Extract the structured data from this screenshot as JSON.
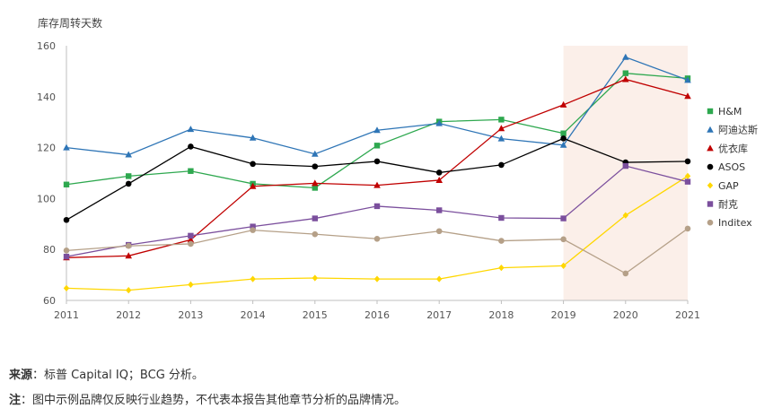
{
  "chart_data": {
    "type": "line",
    "ylabel": "库存周转天数",
    "xlabel": "",
    "x": [
      "2011",
      "2012",
      "2013",
      "2014",
      "2015",
      "2016",
      "2017",
      "2018",
      "2019",
      "2020",
      "2021"
    ],
    "ylim": [
      60,
      160
    ],
    "yticks": [
      60,
      80,
      100,
      120,
      140,
      160
    ],
    "highlight_range": [
      "2019",
      "2021"
    ],
    "highlight_color": "#fbefe9",
    "legend_position": "right",
    "series": [
      {
        "name": "H&M",
        "color": "#2ea84f",
        "marker": "square",
        "values": [
          105.5,
          108.8,
          110.8,
          105.8,
          104.2,
          120.8,
          130.2,
          131.0,
          125.6,
          149.2,
          147.2
        ]
      },
      {
        "name": "阿迪达斯",
        "color": "#2e75b6",
        "marker": "triangle",
        "values": [
          120.0,
          117.2,
          127.2,
          123.8,
          117.5,
          126.8,
          129.5,
          123.5,
          121.0,
          155.5,
          146.5
        ]
      },
      {
        "name": "优衣库",
        "color": "#c00000",
        "marker": "triangle",
        "values": [
          76.8,
          77.5,
          83.8,
          104.8,
          106.0,
          105.2,
          107.2,
          127.5,
          136.8,
          146.8,
          140.2
        ]
      },
      {
        "name": "ASOS",
        "color": "#000000",
        "marker": "circle",
        "values": [
          91.6,
          105.8,
          120.4,
          113.6,
          112.6,
          114.6,
          110.2,
          113.2,
          123.6,
          114.2,
          114.6
        ]
      },
      {
        "name": "GAP",
        "color": "#ffd700",
        "marker": "diamond",
        "values": [
          64.8,
          64.0,
          66.2,
          68.4,
          68.8,
          68.4,
          68.4,
          72.8,
          73.6,
          93.4,
          108.8
        ]
      },
      {
        "name": "耐克",
        "color": "#7b4f9d",
        "marker": "square",
        "values": [
          77.2,
          81.8,
          85.4,
          89.0,
          92.2,
          97.0,
          95.4,
          92.4,
          92.2,
          112.8,
          106.6
        ]
      },
      {
        "name": "Inditex",
        "color": "#b5a088",
        "marker": "circle",
        "values": [
          79.6,
          81.4,
          82.2,
          87.6,
          86.0,
          84.2,
          87.2,
          83.4,
          84.0,
          70.6,
          88.2
        ]
      }
    ]
  },
  "footer": {
    "source_label": "来源",
    "source_text": "：标普 Capital IQ；BCG 分析。",
    "note_label": "注",
    "note_text": "：图中示例品牌仅反映行业趋势，不代表本报告其他章节分析的品牌情况。"
  }
}
